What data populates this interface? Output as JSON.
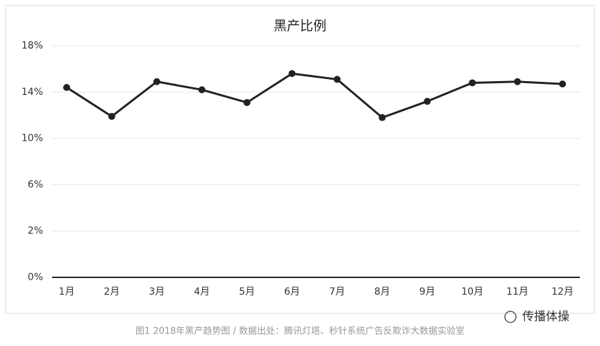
{
  "chart_data": {
    "type": "line",
    "title": "黑产比例",
    "categories": [
      "1月",
      "2月",
      "3月",
      "4月",
      "5月",
      "6月",
      "7月",
      "8月",
      "9月",
      "10月",
      "11月",
      "12月"
    ],
    "series": [
      {
        "name": "黑产比例",
        "color": "#222222",
        "values": [
          14.4,
          11.9,
          14.9,
          14.2,
          13.1,
          15.6,
          15.1,
          11.8,
          13.2,
          14.8,
          14.9,
          14.7
        ]
      }
    ],
    "ylim": [
      0,
      18
    ],
    "yticks": [
      {
        "value": 0,
        "label": "0%"
      },
      {
        "value": 2,
        "label": "2%"
      },
      {
        "value": 6,
        "label": "6%"
      },
      {
        "value": 10,
        "label": "10%"
      },
      {
        "value": 14,
        "label": "14%"
      },
      {
        "value": 18,
        "label": "18%"
      }
    ],
    "grid": true
  },
  "caption": "图1  2018年黑产趋势图 / 数据出处：腾讯灯塔、秒针系统广告反欺诈大数据实验室",
  "watermark": "传播体操"
}
